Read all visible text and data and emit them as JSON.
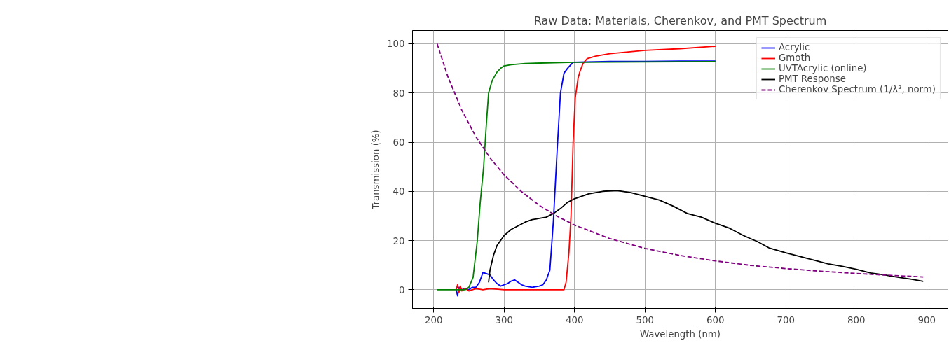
{
  "chart_data": {
    "type": "line",
    "title": "Raw Data: Materials, Cherenkov, and PMT Spectrum",
    "xlabel": "Wavelength (nm)",
    "ylabel": "Transmission (%)",
    "xlim": [
      170,
      930
    ],
    "ylim": [
      -7.6,
      105.4
    ],
    "xticks": [
      200,
      300,
      400,
      500,
      600,
      700,
      800,
      900
    ],
    "yticks": [
      0,
      20,
      40,
      60,
      80,
      100
    ],
    "grid": true,
    "legend": "top right",
    "series": [
      {
        "name": "Acrylic",
        "color": "#0000ff",
        "line_style": "solid",
        "x": [
          232,
          234,
          236,
          240,
          245,
          250,
          255,
          260,
          265,
          270,
          275,
          280,
          285,
          290,
          295,
          300,
          305,
          310,
          315,
          320,
          325,
          330,
          340,
          350,
          355,
          360,
          365,
          370,
          375,
          380,
          385,
          390,
          398,
          450,
          500,
          550,
          600
        ],
        "values": [
          0,
          -2.5,
          1,
          0,
          0.5,
          0,
          1,
          1,
          3,
          7,
          6.5,
          6,
          4,
          2.5,
          1.5,
          2,
          2.5,
          3.5,
          4,
          3,
          2,
          1.5,
          1,
          1.5,
          2,
          4,
          8,
          28,
          55,
          80,
          88,
          90,
          92.5,
          92.8,
          92.8,
          93,
          93
        ]
      },
      {
        "name": "Gmoth",
        "color": "#ff0000",
        "line_style": "solid",
        "x": [
          232,
          234,
          236,
          238,
          240,
          245,
          250,
          260,
          270,
          280,
          300,
          350,
          385,
          388,
          392,
          395,
          398,
          401,
          405,
          408,
          412,
          418,
          430,
          450,
          500,
          550,
          600
        ],
        "values": [
          0,
          2,
          -1,
          1.5,
          -0.5,
          0.5,
          -0.5,
          0.5,
          0,
          0.5,
          0,
          0,
          0,
          3,
          15,
          30,
          60,
          78,
          86,
          89,
          92,
          94,
          95,
          96,
          97.3,
          98,
          99
        ]
      },
      {
        "name": "UVTAcrylic (online)",
        "color": "#008000",
        "line_style": "solid",
        "x": [
          205,
          245,
          250,
          256,
          262,
          266,
          271,
          275,
          278,
          283,
          290,
          295,
          300,
          310,
          330,
          400,
          600
        ],
        "values": [
          0,
          0,
          1,
          5,
          20,
          35,
          50,
          68,
          80,
          85,
          88.5,
          90,
          91,
          91.5,
          92,
          92.5,
          92.8
        ]
      },
      {
        "name": "PMT Response",
        "color": "#000000",
        "line_style": "solid",
        "x": [
          278,
          280,
          285,
          290,
          300,
          310,
          320,
          330,
          340,
          350,
          360,
          370,
          380,
          390,
          400,
          420,
          440,
          460,
          480,
          500,
          520,
          540,
          560,
          580,
          600,
          620,
          640,
          660,
          676,
          700,
          720,
          740,
          760,
          780,
          800,
          820,
          840,
          860,
          880,
          895
        ],
        "values": [
          3,
          8,
          14,
          18,
          22,
          24.5,
          26,
          27.5,
          28.5,
          29,
          29.5,
          31,
          33,
          35.5,
          37,
          39,
          40,
          40.3,
          39.5,
          38,
          36.5,
          34,
          31,
          29.5,
          27,
          25,
          22,
          19.5,
          17,
          15,
          13.5,
          12,
          10.5,
          9.5,
          8.3,
          6.8,
          6,
          5,
          4.2,
          3.4
        ]
      },
      {
        "name": "Cherenkov Spectrum (1/λ², norm)",
        "color": "#800080",
        "line_style": "dashed",
        "x": [
          205,
          220,
          240,
          260,
          280,
          300,
          325,
          350,
          375,
          400,
          450,
          500,
          550,
          600,
          650,
          700,
          750,
          800,
          850,
          895
        ],
        "values": [
          100,
          86.8,
          73.0,
          62.2,
          53.6,
          46.7,
          39.8,
          34.3,
          29.9,
          26.3,
          20.8,
          16.8,
          13.9,
          11.7,
          9.9,
          8.6,
          7.5,
          6.6,
          5.8,
          5.2
        ]
      }
    ]
  }
}
